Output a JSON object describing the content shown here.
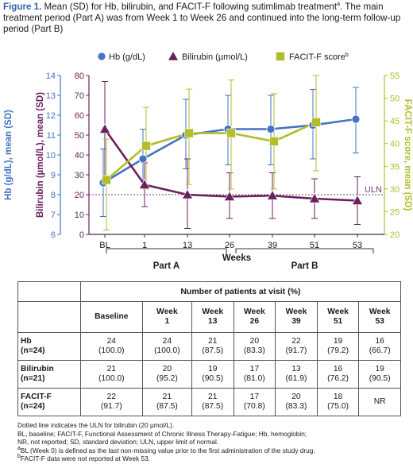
{
  "caption": {
    "label": "Figure 1.",
    "text": " Mean (SD) for Hb, bilirubin, and FACIT-F following sutimlimab treatment",
    "sup": "a",
    "end": ". The main treatment period (Part A) was from Week 1 to Week 26 and continued into the long-term follow-up period (Part B)"
  },
  "colors": {
    "hb": "#4472c4",
    "bilirubin": "#6b1f5e",
    "facit": "#b2bd2b",
    "uln": "#7b3b73",
    "caption": "#2f65a7"
  },
  "chart_data": {
    "type": "line",
    "categories": [
      "BL",
      "1",
      "13",
      "26",
      "39",
      "51",
      "53"
    ],
    "xlabel": "Weeks",
    "legend_placement": "top",
    "axes": {
      "hb": {
        "label": "Hb (g/dL), mean (SD)",
        "range": [
          6,
          14
        ],
        "ticks": [
          6,
          7,
          8,
          9,
          10,
          11,
          12,
          13,
          14
        ],
        "side": "left-outer"
      },
      "bilirubin": {
        "label": "Bilirubin (µmol/L), mean (SD)",
        "range": [
          0,
          80
        ],
        "ticks": [
          0,
          10,
          20,
          30,
          40,
          50,
          60,
          70,
          80
        ],
        "side": "left-inner"
      },
      "facit": {
        "label": "FACIT-F score, mean (SD)",
        "range": [
          20,
          55
        ],
        "ticks": [
          20,
          25,
          30,
          35,
          40,
          45,
          50,
          55
        ],
        "side": "right"
      }
    },
    "series": [
      {
        "key": "hb",
        "name": "Hb (g/dL)",
        "marker": "circle",
        "axis": "hb",
        "values": [
          8.6,
          9.8,
          11.0,
          11.3,
          11.3,
          11.5,
          11.8
        ],
        "err_low": [
          6.9,
          8.4,
          9.3,
          9.5,
          9.5,
          9.8,
          10.1
        ],
        "err_high": [
          10.3,
          11.3,
          12.8,
          13.0,
          13.0,
          13.3,
          13.4
        ]
      },
      {
        "key": "bilirubin",
        "name": "Bilirubin (µmol/L)",
        "marker": "triangle",
        "axis": "bilirubin",
        "values": [
          53,
          25,
          20,
          19,
          19.5,
          18,
          17
        ],
        "err_low": [
          28,
          14,
          3,
          8,
          8,
          8,
          5
        ],
        "err_high": [
          77,
          36,
          38,
          31,
          31,
          28,
          29
        ]
      },
      {
        "key": "facit",
        "name": "FACIT-F score",
        "name_sup": "b",
        "marker": "square",
        "axis": "facit",
        "values": [
          32,
          39.5,
          42.3,
          42.3,
          40.5,
          44.7,
          null
        ],
        "err_low": [
          21,
          30,
          31,
          30,
          30,
          34,
          null
        ],
        "err_high": [
          41,
          48,
          52,
          54,
          51,
          55,
          null
        ]
      }
    ],
    "reference_line": {
      "label": "ULN",
      "axis": "bilirubin",
      "value": 20
    },
    "periods": [
      {
        "label": "Part A",
        "from": "1",
        "to": "26"
      },
      {
        "label": "Part B",
        "from": "26",
        "to": "53"
      }
    ]
  },
  "table": {
    "title": "Number of patients at visit (%)",
    "columns": [
      {
        "l1": "Baseline",
        "l2": ""
      },
      {
        "l1": "Week",
        "l2": "1"
      },
      {
        "l1": "Week",
        "l2": "13"
      },
      {
        "l1": "Week",
        "l2": "26"
      },
      {
        "l1": "Week",
        "l2": "39"
      },
      {
        "l1": "Week",
        "l2": "51"
      },
      {
        "l1": "Week",
        "l2": "53"
      }
    ],
    "rows": [
      {
        "l1": "Hb",
        "l2": "(n=24)",
        "cells": [
          [
            "24",
            "(100.0)"
          ],
          [
            "24",
            "(100.0)"
          ],
          [
            "21",
            "(87.5)"
          ],
          [
            "20",
            "(83.3)"
          ],
          [
            "22",
            "(91.7)"
          ],
          [
            "19",
            "(79.2)"
          ],
          [
            "16",
            "(66.7)"
          ]
        ]
      },
      {
        "l1": "Bilirubin",
        "l2": "(n=21)",
        "cells": [
          [
            "21",
            "(100.0)"
          ],
          [
            "20",
            "(95.2)"
          ],
          [
            "19",
            "(90.5)"
          ],
          [
            "17",
            "(81.0)"
          ],
          [
            "13",
            "(61.9)"
          ],
          [
            "16",
            "(76.2)"
          ],
          [
            "19",
            "(90.5)"
          ]
        ]
      },
      {
        "l1": "FACIT-F",
        "l2": "(n=24)",
        "cells": [
          [
            "22",
            "(91.7)"
          ],
          [
            "21",
            "(87.5)"
          ],
          [
            "21",
            "(87.5)"
          ],
          [
            "17",
            "(70.8)"
          ],
          [
            "20",
            "(83.3)"
          ],
          [
            "18",
            "(75.0)"
          ],
          [
            "NR",
            ""
          ]
        ]
      }
    ]
  },
  "footnotes": {
    "line1": "Dotted line indicates the ULN for bilirubin (20 µmol/L).",
    "line2": "BL, baseline; FACIT-F, Functional Assessment of Chronic Illness Therapy-Fatigue; Hb, hemoglobin;",
    "line3": "NR, not reported; SD, standard deviation; ULN, upper limit of normal.",
    "a_mark": "a",
    "a_text": "BL (Week 0) is defined as the last non-missing value prior to the first administration of the study drug.",
    "b_mark": "b",
    "b_text": "FACIT-F data were not reported at Week 53."
  }
}
